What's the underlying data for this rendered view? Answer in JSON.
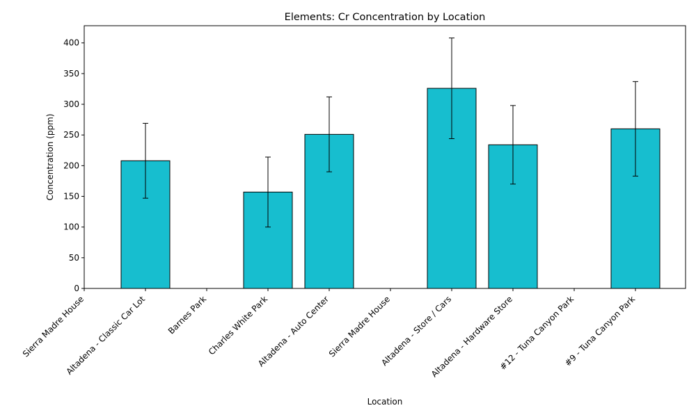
{
  "chart_data": {
    "type": "bar",
    "title": "Elements: Cr Concentration by Location",
    "xlabel": "Location",
    "ylabel": "Concentration (ppm)",
    "categories": [
      "Sierra Madre House",
      "Altadena - Classic Car Lot",
      "Barnes Park",
      "Charles White Park",
      "Altadena - Auto Center",
      "Sierra Madre House",
      "Altadena - Store / Cars",
      "Altadena - Hardware Store",
      "#12 - Tuna Canyon Park",
      "#9 - Tuna Canyon Park"
    ],
    "values": [
      null,
      208,
      null,
      157,
      251,
      null,
      326,
      234,
      null,
      260
    ],
    "errors": [
      null,
      61,
      null,
      57,
      61,
      null,
      82,
      64,
      null,
      77
    ],
    "ylim": [
      0,
      428
    ],
    "yticks": [
      0,
      50,
      100,
      150,
      200,
      250,
      300,
      350,
      400
    ],
    "grid": false,
    "legend": "none",
    "bar_color": "#17becf",
    "edge_color": "#000000"
  }
}
